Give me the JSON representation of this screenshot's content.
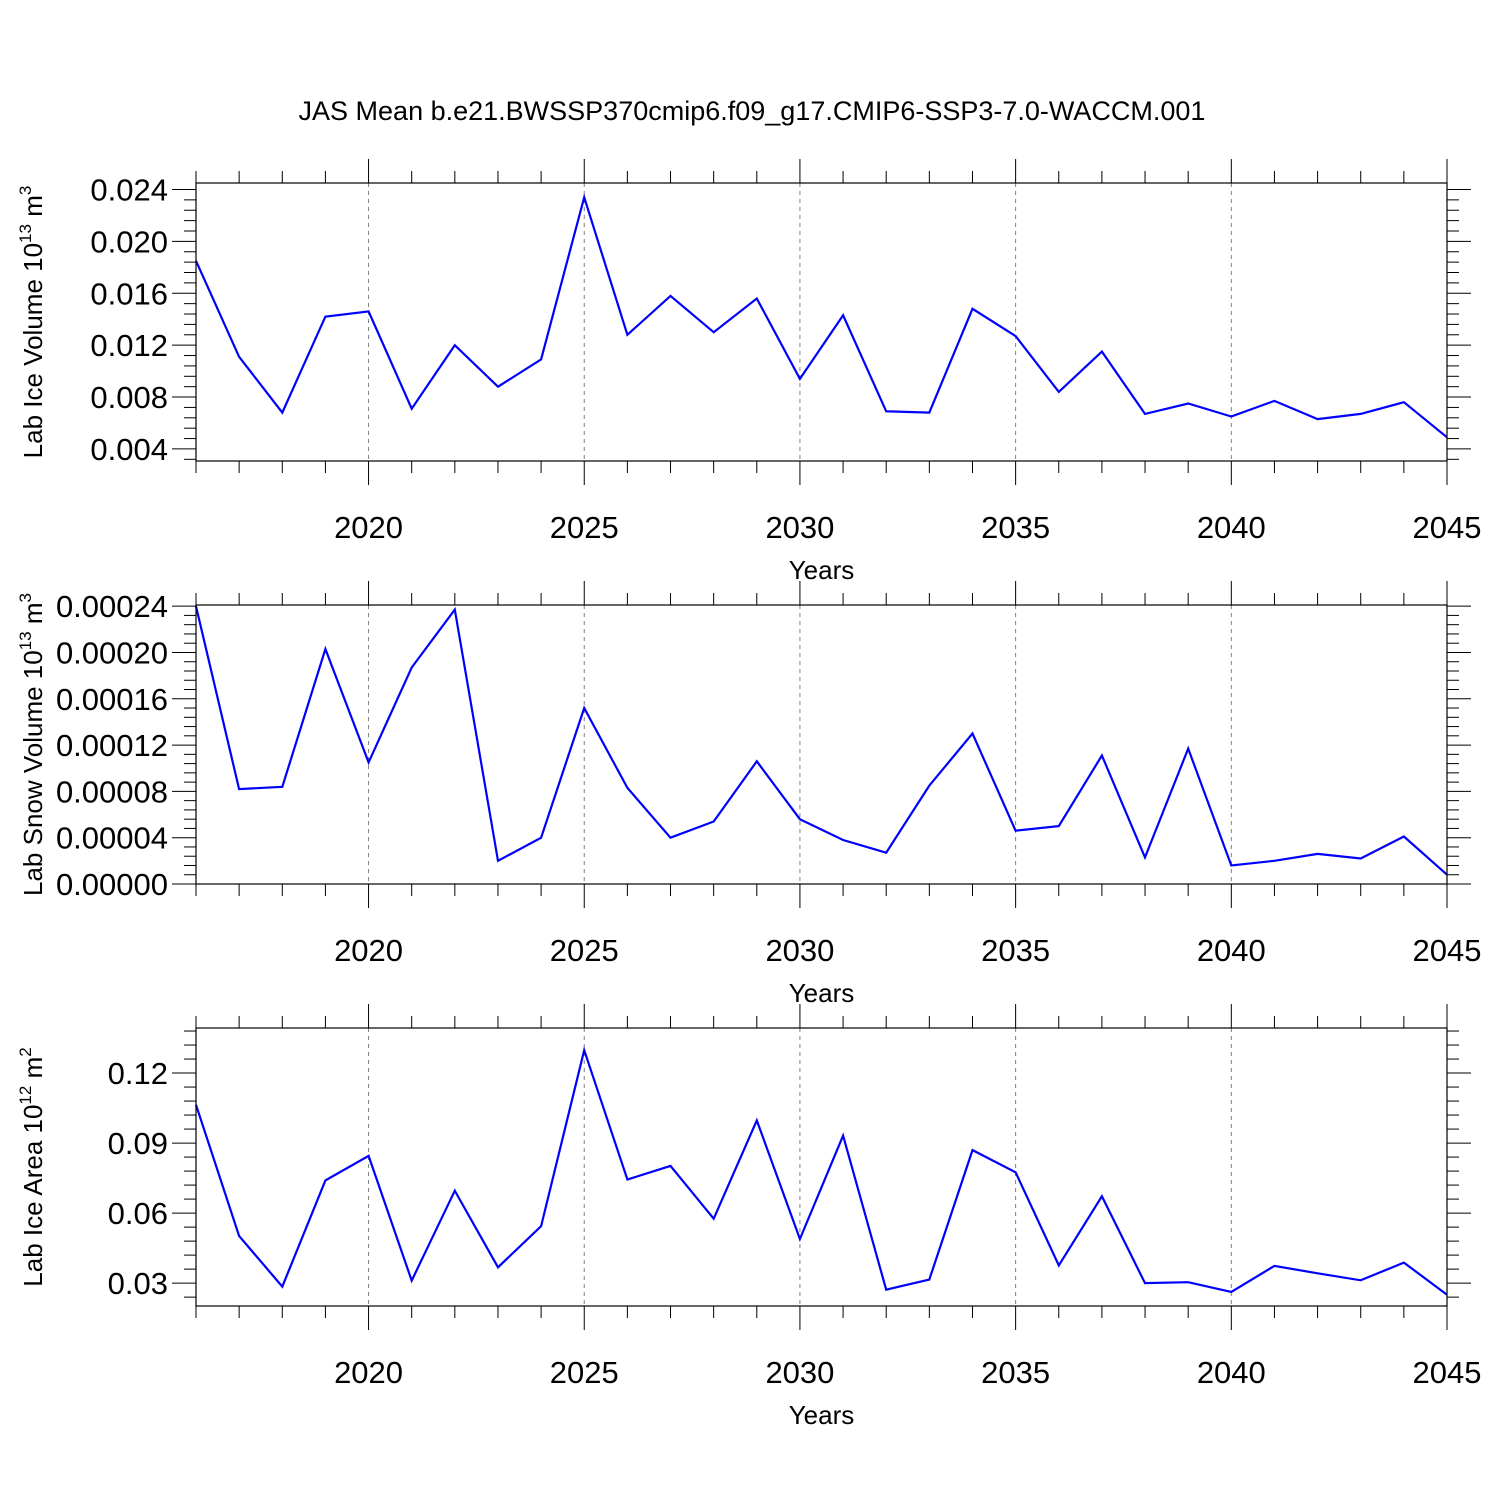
{
  "figure": {
    "title": "JAS Mean b.e21.BWSSP370cmip6.f09_g17.CMIP6-SSP3-7.0-WACCM.001"
  },
  "style": {
    "line_color": "#0000ff",
    "axis_color": "#000000",
    "grid_color": "#808080",
    "background": "#ffffff"
  },
  "chart_data": [
    {
      "type": "line",
      "xlabel": "Years",
      "ylabel_main": "Lab Ice Volume 10",
      "ylabel_exp": "13",
      "ylabel_unit": " m",
      "ylabel_unit_exp": "3",
      "xlim": [
        2016,
        2045
      ],
      "ylim": [
        0.00307,
        0.0245
      ],
      "xticks": [
        "2020",
        "2025",
        "2030",
        "2035",
        "2040",
        "2045"
      ],
      "yticks": [
        "0.004",
        "0.008",
        "0.012",
        "0.016",
        "0.020",
        "0.024"
      ],
      "grid": "dashed vertical at major x ticks",
      "series": [
        {
          "x": [
            2016,
            2017,
            2018,
            2019,
            2020,
            2021,
            2022,
            2023,
            2024,
            2025,
            2026,
            2027,
            2028,
            2029,
            2030,
            2031,
            2032,
            2033,
            2034,
            2035,
            2036,
            2037,
            2038,
            2039,
            2040,
            2041,
            2042,
            2043,
            2044,
            2045
          ],
          "values": [
            0.0185,
            0.0111,
            0.0068,
            0.0142,
            0.0146,
            0.0071,
            0.012,
            0.0088,
            0.0109,
            0.0234,
            0.0128,
            0.0158,
            0.013,
            0.0156,
            0.0094,
            0.0143,
            0.0069,
            0.0068,
            0.0148,
            0.0127,
            0.0084,
            0.0115,
            0.0067,
            0.0075,
            0.0065,
            0.0077,
            0.0063,
            0.0067,
            0.0076,
            0.0049
          ]
        }
      ]
    },
    {
      "type": "line",
      "xlabel": "Years",
      "ylabel_main": "Lab Snow Volume 10",
      "ylabel_exp": "13",
      "ylabel_unit": " m",
      "ylabel_unit_exp": "3",
      "xlim": [
        2016,
        2045
      ],
      "ylim": [
        0.0,
        0.000241
      ],
      "xticks": [
        "2020",
        "2025",
        "2030",
        "2035",
        "2040",
        "2045"
      ],
      "yticks": [
        "0.00000",
        "0.00004",
        "0.00008",
        "0.00012",
        "0.00016",
        "0.00020",
        "0.00024"
      ],
      "grid": "dashed vertical at major x ticks",
      "series": [
        {
          "x": [
            2016,
            2017,
            2018,
            2019,
            2020,
            2021,
            2022,
            2023,
            2024,
            2025,
            2026,
            2027,
            2028,
            2029,
            2030,
            2031,
            2032,
            2033,
            2034,
            2035,
            2036,
            2037,
            2038,
            2039,
            2040,
            2041,
            2042,
            2043,
            2044,
            2045
          ],
          "values": [
            0.00024,
            8.2e-05,
            8.4e-05,
            0.000203,
            0.000105,
            0.000187,
            0.000237,
            2e-05,
            4e-05,
            0.000152,
            8.3e-05,
            4e-05,
            5.4e-05,
            0.000106,
            5.6e-05,
            3.8e-05,
            2.7e-05,
            8.5e-05,
            0.00013,
            4.6e-05,
            5e-05,
            0.000111,
            2.3e-05,
            0.000117,
            1.6e-05,
            2e-05,
            2.6e-05,
            2.2e-05,
            4.1e-05,
            8e-06
          ]
        }
      ]
    },
    {
      "type": "line",
      "xlabel": "Years",
      "ylabel_main": "Lab Ice Area 10",
      "ylabel_exp": "12",
      "ylabel_unit": " m",
      "ylabel_unit_exp": "2",
      "xlim": [
        2016,
        2045
      ],
      "ylim": [
        0.0202,
        0.1393
      ],
      "xticks": [
        "2020",
        "2025",
        "2030",
        "2035",
        "2040",
        "2045"
      ],
      "yticks": [
        "0.03",
        "0.06",
        "0.09",
        "0.12"
      ],
      "grid": "dashed vertical at major x ticks",
      "series": [
        {
          "x": [
            2016,
            2017,
            2018,
            2019,
            2020,
            2021,
            2022,
            2023,
            2024,
            2025,
            2026,
            2027,
            2028,
            2029,
            2030,
            2031,
            2032,
            2033,
            2034,
            2035,
            2036,
            2037,
            2038,
            2039,
            2040,
            2041,
            2042,
            2043,
            2044,
            2045
          ],
          "values": [
            0.1064,
            0.0502,
            0.0285,
            0.074,
            0.0845,
            0.0311,
            0.0696,
            0.0368,
            0.0544,
            0.1298,
            0.0744,
            0.0802,
            0.0576,
            0.0997,
            0.0489,
            0.0932,
            0.0272,
            0.0315,
            0.087,
            0.0775,
            0.0376,
            0.0672,
            0.03,
            0.0304,
            0.0262,
            0.0374,
            0.0342,
            0.0312,
            0.0388,
            0.025
          ]
        }
      ]
    }
  ]
}
